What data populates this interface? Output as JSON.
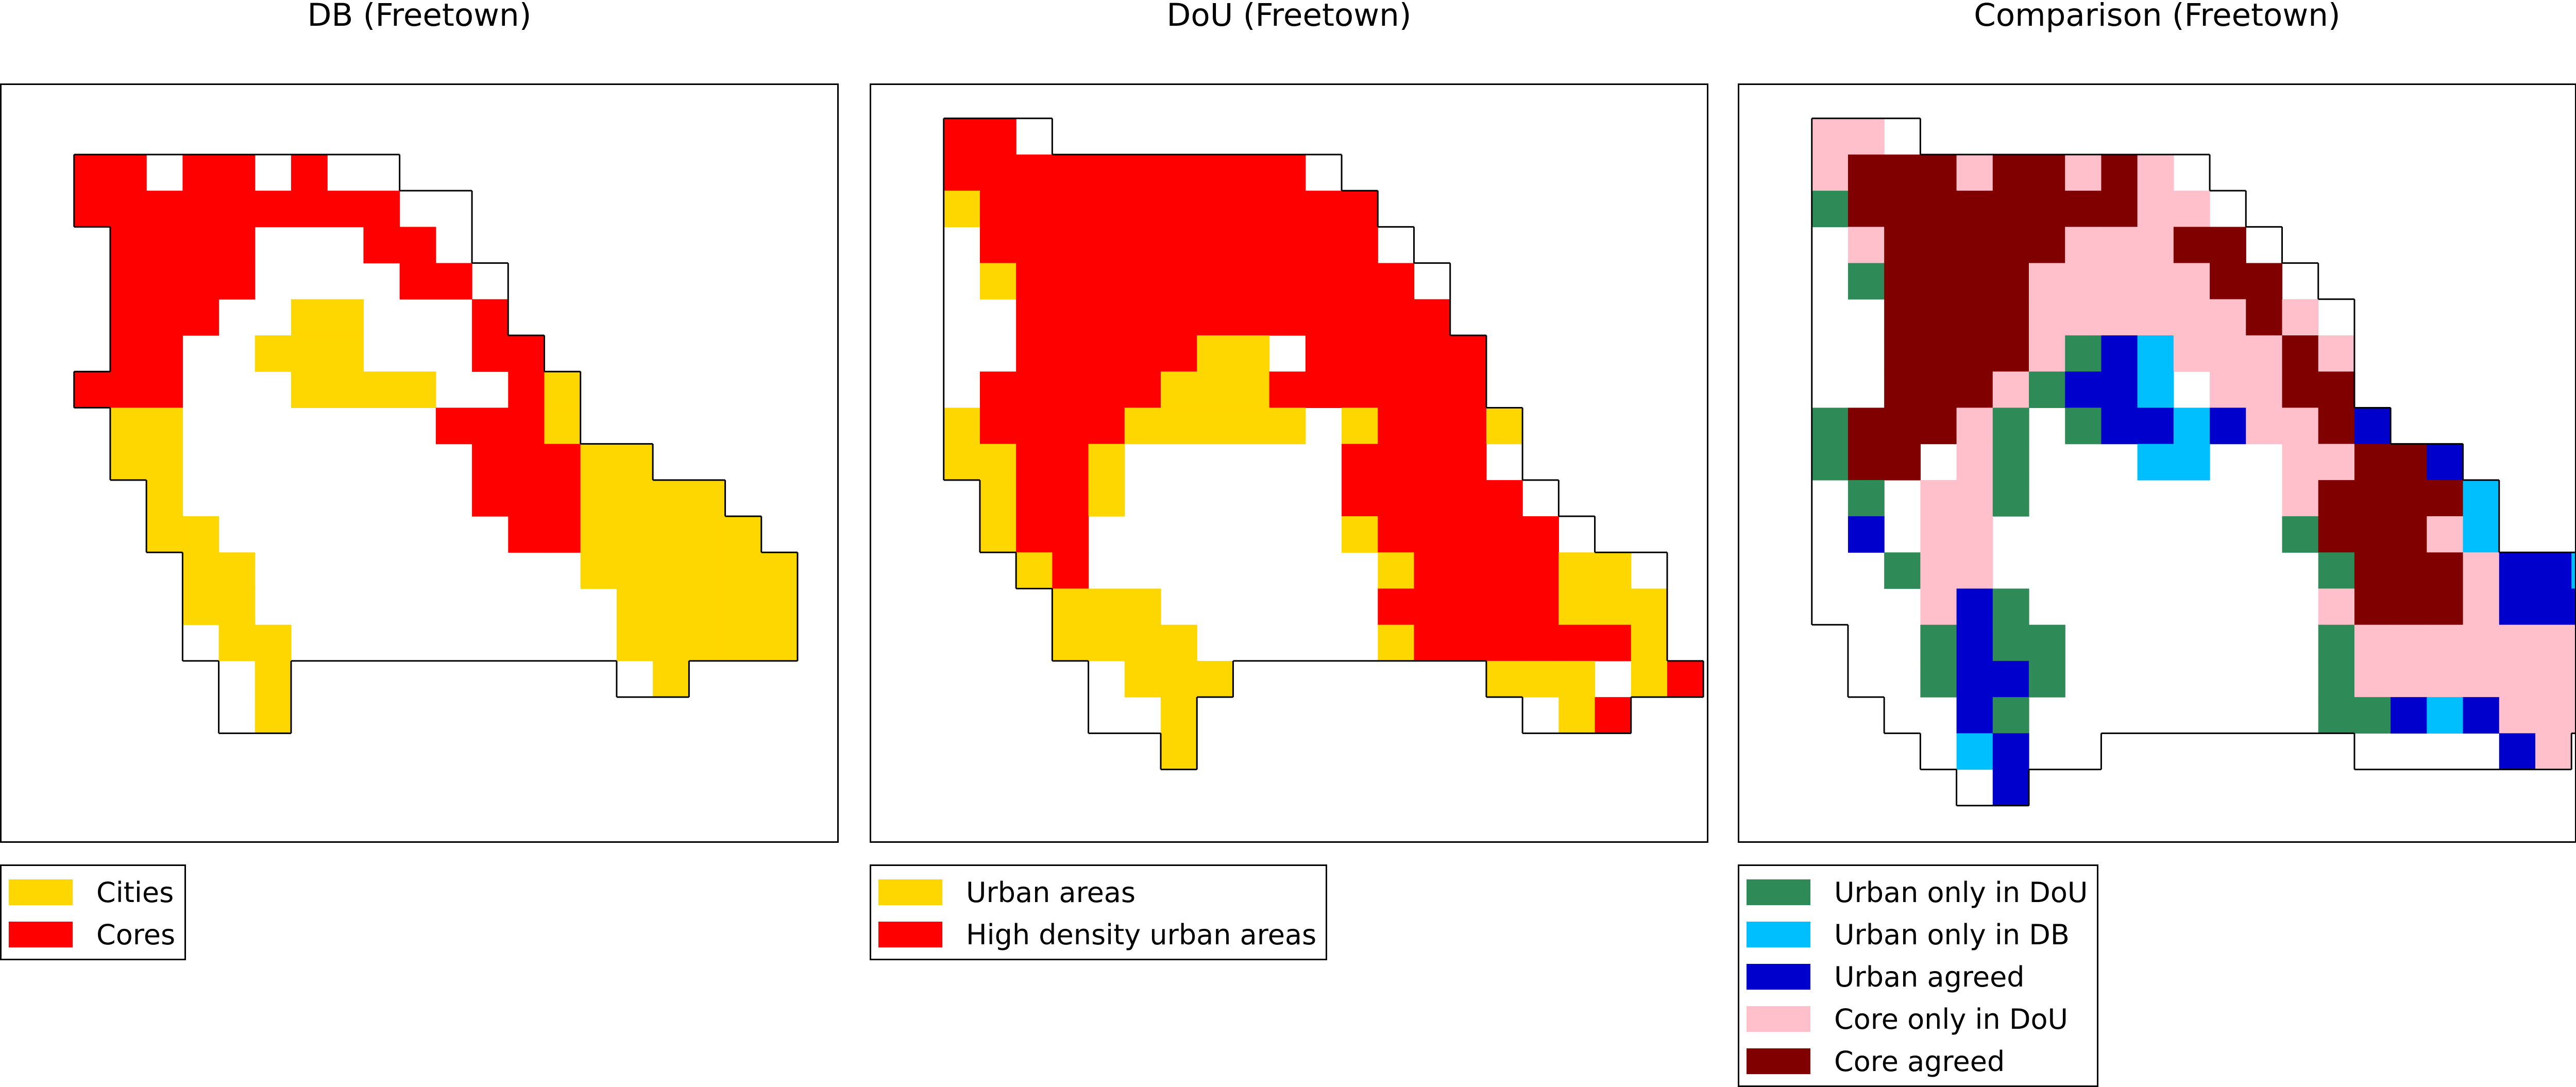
{
  "panels": [
    {
      "title": "DB (Freetown)",
      "legend": [
        {
          "label": "Cities",
          "color": "#FFD700"
        },
        {
          "label": "Cores",
          "color": "#FF0000"
        }
      ],
      "grid": [
        "......",
        "..RRWRRWRWW.",
        "..RRRRRRRRRWW",
        "...RRRRWWWRRW",
        "...RRRRWWWWRRW",
        "...RRRWWYYWWWR",
        "...RRWWYYYWWWRR",
        "..RRRWWWYYYYWWRY",
        "...YYWWWWWWWRRRY",
        "...YYWWWWWWWWRRRYY",
        "....YWWWWWWWWRRRYYYY",
        "....YYWWWWWWWWRRYYYYY",
        ".....YYWWWWWWWWWYYYYYY",
        ".....YYWWWWWWWWWWYYYYY",
        ".....WYYWWWWWWWWWYYYYY",
        "......WY.........WY",
        "......WY"
      ]
    },
    {
      "title": "DoU (Freetown)",
      "legend": [
        {
          "label": "Urban areas",
          "color": "#FFD700"
        },
        {
          "label": "High density urban areas",
          "color": "#FF0000"
        }
      ],
      "grid": [
        "..RRW",
        "..RRRRRRRRRRW",
        "..YRRRRRRRRRRR",
        "..WRRRRRRRRRRRW",
        "..WYRRRRRRRRRRRW",
        "..WWRRRRRRRRRRRR",
        "..WWRRRRRYYWRRRRR",
        "..WRRRRRYYYRRRRRR",
        "..YRRRRYYYYYWYRRRY",
        "..YYRRYWWWWWWRRRRW",
        "...YRRYWWWWWWRRRRRW",
        "...YRRWWWWWWWYRRRRRW",
        "....YRWWWWWWWWYRRRRYYW",
        ".....YYYWWWWWWRRRRRYYY",
        ".....YYYYWWWWWYRRRRRRY",
        "......WYYY.......YYYWYR",
        "......WWY.........WYR",
        "........Y"
      ]
    },
    {
      "title": "Comparison (Freetown)",
      "legend": [
        {
          "label": "Urban only in DoU",
          "color": "#2E8B57"
        },
        {
          "label": "Urban only in DB",
          "color": "#00BFFF"
        },
        {
          "label": "Urban agreed",
          "color": "#0000CD"
        },
        {
          "label": "Core only in DoU",
          "color": "#FFC0CB"
        },
        {
          "label": "Core agreed",
          "color": "#800000"
        }
      ],
      "grid": [
        "..PPW",
        "..PMMMPMMPMPW",
        "..GMMMMMMMMPPW",
        "..WPMMMMMPPPMMW",
        "..WGMMMMPPPPPMMW",
        "..WWMMMMPPPPPPMPW",
        "..WWMMMMPGUCPPPMP",
        "..WWMMMPGUUCWPPMM",
        "..GMMMPGWGUUCUPPMU",
        "..GMMWPGWWWCCWWPPMMU",
        "..WGWPPGWWWWWWWPMMMMC",
        "..WUWPPWWWWWWWWGMMMPC",
        "..WWGPPWWWWWWWWWGMMMPUUC",
        "..WWWPUGWWWWWWWWPMMMPUUUUU",
        "...WWGUGGWWWWWWWGPPPPPPPPU",
        "...WWGUUGWWWWWWWGPPPPPPPPU",
        "....WWUGWWWWWWWWGGUCUPPP",
        ".....WCUWW.......WWWWUP",
        "......WU"
      ]
    }
  ]
}
